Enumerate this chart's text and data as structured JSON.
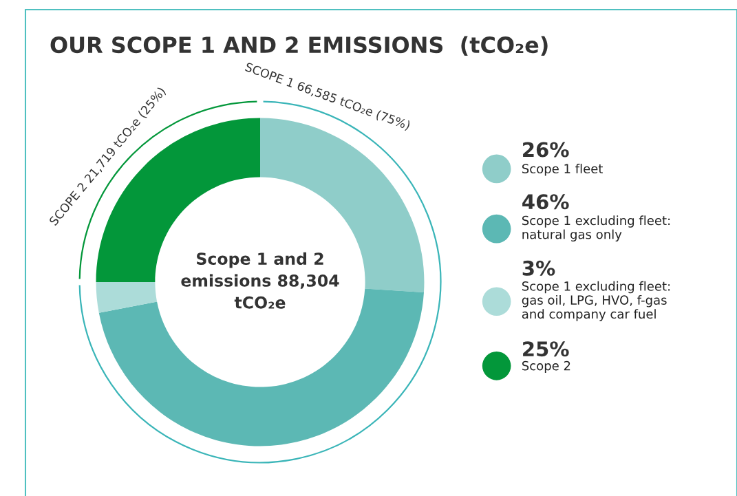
{
  "chart_data": {
    "type": "donut",
    "title": "OUR SCOPE 1 AND 2 EMISSIONS  (tCO₂e)",
    "categories": [
      "Scope 1 fleet",
      "Scope 1 excluding fleet: natural gas only",
      "Scope 1 excluding fleet: gas oil, LPG, HVO, f-gas and company car fuel",
      "Scope 2"
    ],
    "values": [
      26,
      46,
      3,
      25
    ],
    "colors": [
      "#8fcdc9",
      "#5cb8b4",
      "#acdcd9",
      "#03973a"
    ],
    "value_labels": [
      "26%",
      "46%",
      "3%",
      "25%"
    ],
    "legend": "right",
    "annotations": [
      "Scope 1 and 2 emissions 88,304 tCO₂e",
      "SCOPE 1 66,585 tCO₂e (75%)",
      "SCOPE 2 21,719 tCO₂e (25%)"
    ]
  }
}
